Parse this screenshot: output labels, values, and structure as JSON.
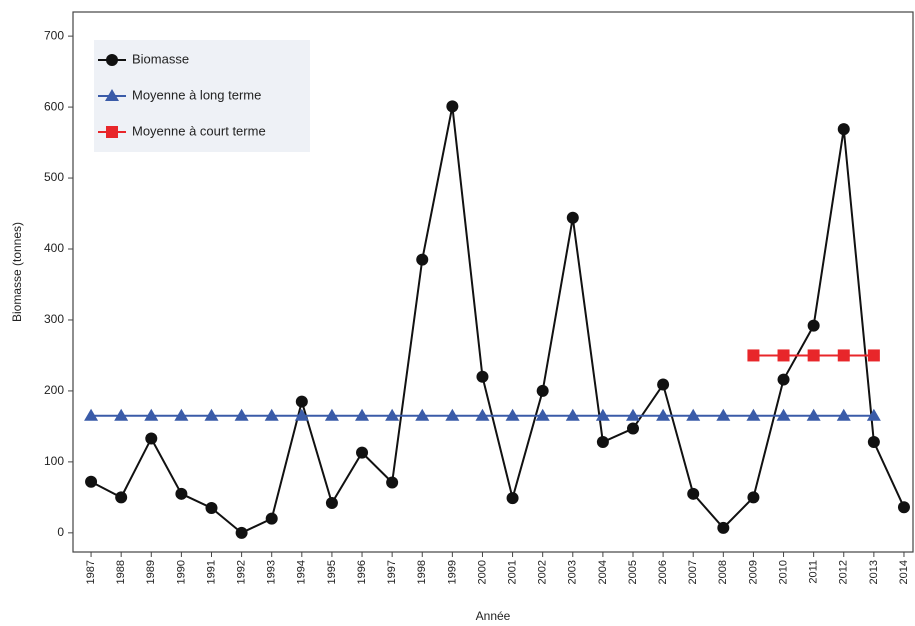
{
  "chart_data": {
    "type": "line",
    "x": [
      1987,
      1988,
      1989,
      1990,
      1991,
      1992,
      1993,
      1994,
      1995,
      1996,
      1997,
      1998,
      1999,
      2000,
      2001,
      2002,
      2003,
      2004,
      2005,
      2006,
      2007,
      2008,
      2009,
      2010,
      2011,
      2012,
      2013,
      2014
    ],
    "series": [
      {
        "name": "Biomasse",
        "color": "#111111",
        "marker": "circle",
        "values": [
          72,
          50,
          133,
          55,
          35,
          0,
          20,
          185,
          42,
          113,
          71,
          385,
          601,
          220,
          49,
          200,
          444,
          128,
          147,
          209,
          55,
          7,
          50,
          216,
          292,
          569,
          128,
          36
        ]
      },
      {
        "name": "Moyenne à long terme",
        "color": "#3a5ba8",
        "marker": "triangle",
        "values": [
          165,
          165,
          165,
          165,
          165,
          165,
          165,
          165,
          165,
          165,
          165,
          165,
          165,
          165,
          165,
          165,
          165,
          165,
          165,
          165,
          165,
          165,
          165,
          165,
          165,
          165,
          165,
          null
        ]
      },
      {
        "name": "Moyenne à court terme",
        "color": "#e8262a",
        "marker": "square",
        "values": [
          null,
          null,
          null,
          null,
          null,
          null,
          null,
          null,
          null,
          null,
          null,
          null,
          null,
          null,
          null,
          null,
          null,
          null,
          null,
          null,
          null,
          null,
          250,
          250,
          250,
          250,
          250,
          null
        ]
      }
    ],
    "xlim": [
      1986.4,
      2014.3
    ],
    "xticks": [
      1987,
      1988,
      1989,
      1990,
      1991,
      1992,
      1993,
      1994,
      1995,
      1996,
      1997,
      1998,
      1999,
      2000,
      2001,
      2002,
      2003,
      2004,
      2005,
      2006,
      2007,
      2008,
      2009,
      2010,
      2011,
      2012,
      2013,
      2014
    ],
    "ylim": [
      -27,
      734
    ],
    "yticks": [
      0,
      100,
      200,
      300,
      400,
      500,
      600,
      700
    ],
    "xlabel": "Année",
    "ylabel": "Biomasse (tonnes)",
    "legend": "upper left"
  }
}
